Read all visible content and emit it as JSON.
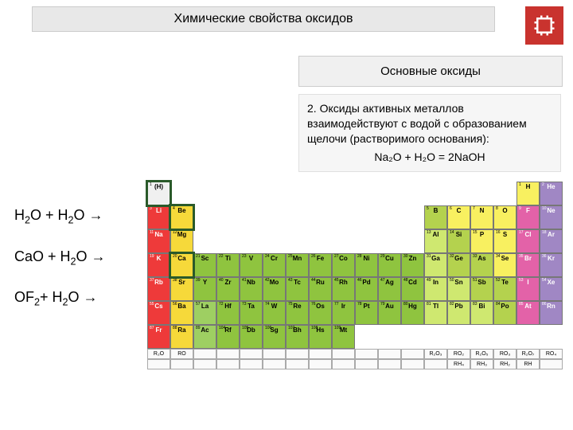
{
  "title": "Химические свойства оксидов",
  "subtitle": "Основные оксиды",
  "body": {
    "line1": "2. Оксиды активных металлов взаимодействуют с водой с образованием щелочи (растворимого основания):",
    "formula": "Na₂O + H₂O = 2NaOH"
  },
  "equations": [
    "H₂O + H₂O →",
    "CaO + H₂O →",
    "OF₂ + H₂O →"
  ],
  "corner_icon_color": "#c9332e",
  "periodic_table": {
    "colors": {
      "alkali": "#ee3a3a",
      "alkaline_earth": "#f6d93a",
      "transition": "#8fc43f",
      "post_transition": "#cfe870",
      "metalloid": "#b4d24e",
      "nonmetal": "#f8f060",
      "halogen": "#e362a8",
      "noble": "#a087c4",
      "hydrogen": "#f0f0f0",
      "lanthanide": "#9ecf62"
    },
    "highlighted_elements": [
      "H",
      "Be",
      "Ca"
    ],
    "rows": [
      [
        [
          "H",
          "c-h",
          1,
          "(H)"
        ],
        null,
        null,
        null,
        null,
        null,
        null,
        null,
        null,
        null,
        null,
        null,
        null,
        null,
        null,
        null,
        [
          "H",
          "c-nm",
          1,
          ""
        ],
        [
          "He",
          "c-noble",
          2,
          ""
        ]
      ],
      [
        [
          "Li",
          "c-alk",
          3,
          ""
        ],
        [
          "Be",
          "c-aearth",
          4,
          ""
        ],
        null,
        null,
        null,
        null,
        null,
        null,
        null,
        null,
        null,
        null,
        [
          "B",
          "c-metd",
          5,
          ""
        ],
        [
          "C",
          "c-nm",
          6,
          ""
        ],
        [
          "N",
          "c-nm",
          7,
          ""
        ],
        [
          "O",
          "c-nm",
          8,
          ""
        ],
        [
          "F",
          "c-hal",
          9,
          ""
        ],
        [
          "Ne",
          "c-noble",
          10,
          ""
        ]
      ],
      [
        [
          "Na",
          "c-alk",
          11,
          ""
        ],
        [
          "Mg",
          "c-aearth",
          12,
          ""
        ],
        null,
        null,
        null,
        null,
        null,
        null,
        null,
        null,
        null,
        null,
        [
          "Al",
          "c-met",
          13,
          ""
        ],
        [
          "Si",
          "c-metd",
          14,
          ""
        ],
        [
          "P",
          "c-nm",
          15,
          ""
        ],
        [
          "S",
          "c-nm",
          16,
          ""
        ],
        [
          "Cl",
          "c-hal",
          17,
          ""
        ],
        [
          "Ar",
          "c-noble",
          18,
          ""
        ]
      ],
      [
        [
          "K",
          "c-alk",
          19,
          ""
        ],
        [
          "Ca",
          "c-aearth",
          20,
          ""
        ],
        [
          "Sc",
          "c-tm",
          21,
          ""
        ],
        [
          "Ti",
          "c-tm",
          22,
          ""
        ],
        [
          "V",
          "c-tm",
          23,
          ""
        ],
        [
          "Cr",
          "c-tm",
          24,
          ""
        ],
        [
          "Mn",
          "c-tm",
          25,
          ""
        ],
        [
          "Fe",
          "c-tm",
          26,
          ""
        ],
        [
          "Co",
          "c-tm",
          27,
          ""
        ],
        [
          "Ni",
          "c-tm",
          28,
          ""
        ],
        [
          "Cu",
          "c-tm",
          29,
          ""
        ],
        [
          "Zn",
          "c-tm",
          30,
          ""
        ],
        [
          "Ga",
          "c-met",
          31,
          ""
        ],
        [
          "Ge",
          "c-metd",
          32,
          ""
        ],
        [
          "As",
          "c-metd",
          33,
          ""
        ],
        [
          "Se",
          "c-nm",
          34,
          ""
        ],
        [
          "Br",
          "c-hal",
          35,
          ""
        ],
        [
          "Kr",
          "c-noble",
          36,
          ""
        ]
      ],
      [
        [
          "Rb",
          "c-alk",
          37,
          ""
        ],
        [
          "Sr",
          "c-aearth",
          38,
          ""
        ],
        [
          "Y",
          "c-tm",
          39,
          ""
        ],
        [
          "Zr",
          "c-tm",
          40,
          ""
        ],
        [
          "Nb",
          "c-tm",
          41,
          ""
        ],
        [
          "Mo",
          "c-tm",
          42,
          ""
        ],
        [
          "Tc",
          "c-tm",
          43,
          ""
        ],
        [
          "Ru",
          "c-tm",
          44,
          ""
        ],
        [
          "Rh",
          "c-tm",
          45,
          ""
        ],
        [
          "Pd",
          "c-tm",
          46,
          ""
        ],
        [
          "Ag",
          "c-tm",
          47,
          ""
        ],
        [
          "Cd",
          "c-tm",
          48,
          ""
        ],
        [
          "In",
          "c-met",
          49,
          ""
        ],
        [
          "Sn",
          "c-met",
          50,
          ""
        ],
        [
          "Sb",
          "c-metd",
          51,
          ""
        ],
        [
          "Te",
          "c-metd",
          52,
          ""
        ],
        [
          "I",
          "c-hal",
          53,
          ""
        ],
        [
          "Xe",
          "c-noble",
          54,
          ""
        ]
      ],
      [
        [
          "Cs",
          "c-alk",
          55,
          ""
        ],
        [
          "Ba",
          "c-aearth",
          56,
          ""
        ],
        [
          "La",
          "c-lan",
          57,
          ""
        ],
        [
          "Hf",
          "c-tm",
          72,
          ""
        ],
        [
          "Ta",
          "c-tm",
          73,
          ""
        ],
        [
          "W",
          "c-tm",
          74,
          ""
        ],
        [
          "Re",
          "c-tm",
          75,
          ""
        ],
        [
          "Os",
          "c-tm",
          76,
          ""
        ],
        [
          "Ir",
          "c-tm",
          77,
          ""
        ],
        [
          "Pt",
          "c-tm",
          78,
          ""
        ],
        [
          "Au",
          "c-tm",
          79,
          ""
        ],
        [
          "Hg",
          "c-tm",
          80,
          ""
        ],
        [
          "Tl",
          "c-met",
          81,
          ""
        ],
        [
          "Pb",
          "c-met",
          82,
          ""
        ],
        [
          "Bi",
          "c-met",
          83,
          ""
        ],
        [
          "Po",
          "c-metd",
          84,
          ""
        ],
        [
          "At",
          "c-hal",
          85,
          ""
        ],
        [
          "Rn",
          "c-noble",
          86,
          ""
        ]
      ],
      [
        [
          "Fr",
          "c-alk",
          87,
          ""
        ],
        [
          "Ra",
          "c-aearth",
          88,
          ""
        ],
        [
          "Ac",
          "c-lan",
          89,
          ""
        ],
        [
          "Rf",
          "c-tm",
          104,
          ""
        ],
        [
          "Db",
          "c-tm",
          105,
          ""
        ],
        [
          "Sg",
          "c-tm",
          106,
          ""
        ],
        [
          "Bh",
          "c-tm",
          107,
          ""
        ],
        [
          "Hs",
          "c-tm",
          108,
          ""
        ],
        [
          "Mt",
          "c-tm",
          109,
          ""
        ],
        null,
        null,
        null,
        null,
        null,
        null,
        null,
        null,
        null
      ]
    ],
    "oxide_row": [
      "R₂O",
      "RO",
      "",
      "",
      "",
      "",
      "",
      "",
      "",
      "",
      "",
      "",
      "R₂O₃",
      "RO₂",
      "R₂O₅",
      "RO₃",
      "R₂O₇",
      "RO₄"
    ],
    "hydride_row": [
      "",
      "",
      "",
      "",
      "",
      "",
      "",
      "",
      "",
      "",
      "",
      "",
      "",
      "RH₄",
      "RH₃",
      "RH₂",
      "RH",
      ""
    ]
  }
}
